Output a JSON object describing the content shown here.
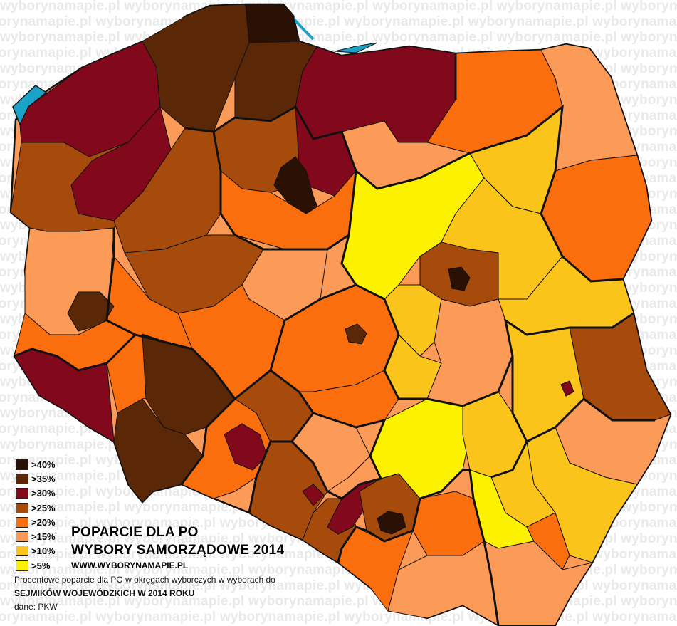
{
  "watermark": {
    "text": "wyborynamapie.pl"
  },
  "title": {
    "line1": "POPARCIE DLA PO",
    "line2": "WYBORY SAMORZĄDOWE 2014",
    "url": "WWW.WYBORYNAMAPIE.PL"
  },
  "notes": {
    "line1": "Procentowe poparcie dla PO w okręgach wyborczych w wyborach do",
    "line2": "SEJMIKÓW WOJEWÓDZKICH W 2014 ROKU",
    "line3": "dane: PKW"
  },
  "legend": [
    {
      "label": ">40%",
      "color": "#2b1103"
    },
    {
      "label": ">35%",
      "color": "#5a2707"
    },
    {
      "label": ">30%",
      "color": "#82081c"
    },
    {
      "label": ">25%",
      "color": "#a64b0c"
    },
    {
      "label": ">20%",
      "color": "#fa6e0e"
    },
    {
      "label": ">15%",
      "color": "#fc9a58"
    },
    {
      "label": ">10%",
      "color": "#fbc41b"
    },
    {
      "label": ">5%",
      "color": "#fcf200"
    }
  ],
  "colors": {
    "sea": "#1aa3c7",
    "border": "#111111"
  }
}
